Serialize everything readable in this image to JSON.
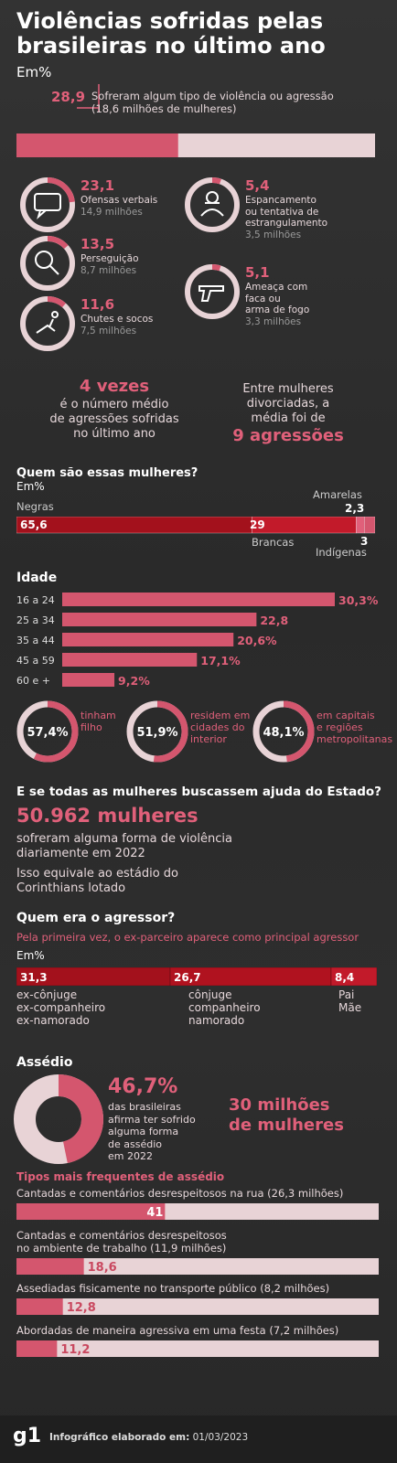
{
  "header": {
    "title_line1": "Violências sofridas pelas",
    "title_line2": "brasileiras no último ano",
    "unit": "Em%"
  },
  "total": {
    "value": "28,9",
    "desc_line1": "Sofreram algum tipo de violência ou agressão",
    "desc_line2": "(18,6 milhões de mulheres)",
    "fraction": 0.289
  },
  "violence_types": [
    {
      "value": "23,1",
      "lines": [
        "Ofensas verbais"
      ],
      "millions": "14,9 milhões",
      "fraction": 0.231,
      "icon": "speech-bubble-icon"
    },
    {
      "value": "13,5",
      "lines": [
        "Perseguição"
      ],
      "millions": "8,7 milhões",
      "fraction": 0.135,
      "icon": "magnifier-icon"
    },
    {
      "value": "11,6",
      "lines": [
        "Chutes e socos"
      ],
      "millions": "7,5 milhões",
      "fraction": 0.116,
      "icon": "fallen-person-icon"
    },
    {
      "value": "5,4",
      "lines": [
        "Espancamento",
        "ou tentativa de",
        "estrangulamento"
      ],
      "millions": "3,5 milhões",
      "fraction": 0.054,
      "icon": "strangled-person-icon"
    },
    {
      "value": "5,1",
      "lines": [
        "Ameaça com",
        "faca ou",
        "arma de fogo"
      ],
      "millions": "3,3 milhões",
      "fraction": 0.051,
      "icon": "gun-icon"
    }
  ],
  "avg": {
    "big": "4 vezes",
    "lines": [
      "é o número médio",
      "de agressões sofridas",
      "no último ano"
    ]
  },
  "divorced": {
    "lines": [
      "Entre mulheres",
      "divorciadas, a",
      "média foi de"
    ],
    "big": "9 agressões"
  },
  "race": {
    "title": "Quem são essas mulheres?",
    "unit": "Em%",
    "negras_label": "Negras",
    "brancas_label": "Brancas",
    "amarelas_label": "Amarelas",
    "indigenas_label": "Indígenas",
    "negras": "65,6",
    "brancas": "29",
    "amarelas": "2,3",
    "indigenas": "3"
  },
  "age": {
    "title": "Idade"
  },
  "chart_data": [
    {
      "type": "bar",
      "title": "",
      "categories": [
        "Sofreram algum tipo de violência ou agressão"
      ],
      "values": [
        28.9
      ],
      "ylim": [
        0,
        100
      ]
    },
    {
      "type": "bar",
      "title": "",
      "categories": [
        "Ofensas verbais",
        "Perseguição",
        "Chutes e socos",
        "Espancamento ou tentativa de estrangulamento",
        "Ameaça com faca ou arma de fogo"
      ],
      "values": [
        23.1,
        13.5,
        11.6,
        5.4,
        5.1
      ]
    },
    {
      "type": "bar",
      "title": "Quem são essas mulheres?",
      "categories": [
        "Negras",
        "Brancas",
        "Amarelas",
        "Indígenas"
      ],
      "values": [
        65.6,
        29,
        2.3,
        3
      ]
    },
    {
      "type": "bar",
      "title": "Idade",
      "categories": [
        "16 a 24",
        "25 a 34",
        "35 a 44",
        "45 a 59",
        "60 e +"
      ],
      "values": [
        30.3,
        22.8,
        20.6,
        17.1,
        9.2
      ],
      "labels": [
        "30,3%",
        "22,8",
        "20,6%",
        "17,1%",
        "9,2%"
      ]
    },
    {
      "type": "pie",
      "title": "",
      "categories": [
        "tinham filho",
        "residem em cidades do interior",
        "em capitais e regiões metropolitanas"
      ],
      "values": [
        57.4,
        51.9,
        48.1
      ]
    },
    {
      "type": "bar",
      "title": "Quem era o agressor?",
      "categories": [
        "ex-cônjuge ex-companheiro ex-namorado",
        "cônjuge companheiro namorado",
        "Pai Mãe"
      ],
      "values": [
        31.3,
        26.7,
        8.4
      ]
    },
    {
      "type": "pie",
      "title": "Assédio",
      "categories": [
        "afirma ter sofrido alguma forma de assédio em 2022"
      ],
      "values": [
        46.7
      ]
    },
    {
      "type": "bar",
      "title": "Tipos mais frequentes de assédio",
      "categories": [
        "Cantadas e comentários desrespeitosos na rua",
        "Cantadas e comentários desrespeitosos no ambiente de trabalho",
        "Assediadas fisicamente no transporte público",
        "Abordadas de maneira agressiva em uma festa"
      ],
      "values": [
        41,
        18.6,
        12.8,
        11.2
      ],
      "ylim": [
        0,
        100
      ]
    }
  ],
  "age_labels": [
    "30,3%",
    "22,8",
    "20,6%",
    "17,1%",
    "9,2%"
  ],
  "donuts": [
    {
      "value": "57,4%",
      "lines": [
        "tinham",
        "filho"
      ],
      "fraction": 0.574
    },
    {
      "value": "51,9%",
      "lines": [
        "residem em",
        "cidades do",
        "interior"
      ],
      "fraction": 0.519
    },
    {
      "value": "48,1%",
      "lines": [
        "em capitais",
        "e regiões",
        "metropolitanas"
      ],
      "fraction": 0.481
    }
  ],
  "state": {
    "title": "E se todas as mulheres buscassem ajuda do Estado?",
    "big": "50.962 mulheres",
    "line1": "sofreram alguma forma de violência",
    "line2": "diariamente em 2022",
    "line3": "Isso equivale ao estádio do",
    "line4": "Corinthians lotado"
  },
  "aggressor": {
    "title": "Quem era o agressor?",
    "subtitle": "Pela primeira vez, o ex-parceiro aparece como principal agressor",
    "unit": "Em%",
    "values": [
      "31,3",
      "26,7",
      "8,4"
    ],
    "labels": [
      [
        "ex-cônjuge",
        "ex-companheiro",
        "ex-namorado"
      ],
      [
        "cônjuge",
        "companheiro",
        "namorado"
      ],
      [
        "Pai",
        "Mãe"
      ]
    ]
  },
  "harass": {
    "title": "Assédio",
    "value": "46,7%",
    "lines": [
      "das brasileiras",
      "afirma ter sofrido",
      "alguma forma",
      "de assédio",
      "em 2022"
    ],
    "big_line1": "30 milhões",
    "big_line2": "de mulheres",
    "fraction": 0.467,
    "types_title": "Tipos mais frequentes de assédio",
    "items": [
      {
        "lines": [
          "Cantadas e comentários desrespeitosos na rua (26,3 milhões)"
        ],
        "value": "41"
      },
      {
        "lines": [
          "Cantadas e comentários desrespeitosos",
          "no ambiente de trabalho (11,9 milhões)"
        ],
        "value": "18,6"
      },
      {
        "lines": [
          "Assediadas fisicamente no transporte público (8,2 milhões)"
        ],
        "value": "12,8"
      },
      {
        "lines": [
          "Abordadas de maneira agressiva em uma festa (7,2 milhões)"
        ],
        "value": "11,2"
      }
    ]
  },
  "footer": {
    "logo": "g1",
    "label": "Infográfico elaborado em:",
    "date": "01/03/2023"
  },
  "colors": {
    "pink": "#e0607a",
    "light": "#e8d3d6",
    "dark_red": "#a3111c",
    "red": "#c21a2a"
  }
}
